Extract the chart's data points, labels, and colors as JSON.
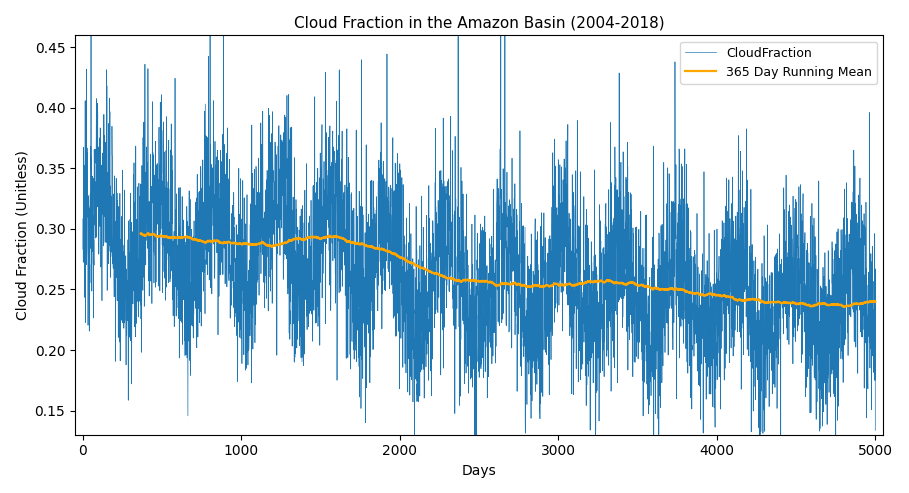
{
  "title": "Cloud Fraction in the Amazon Basin (2004-2018)",
  "xlabel": "Days",
  "ylabel": "Cloud Fraction (Unitless)",
  "xlim": [
    -50,
    5050
  ],
  "ylim": [
    0.13,
    0.46
  ],
  "yticks": [
    0.15,
    0.2,
    0.25,
    0.3,
    0.35,
    0.4,
    0.45
  ],
  "xticks": [
    0,
    1000,
    2000,
    3000,
    4000,
    5000
  ],
  "n_days": 5000,
  "cloud_color": "#1f77b4",
  "running_mean_color": "orange",
  "cloud_linewidth": 0.5,
  "running_mean_linewidth": 1.6,
  "window": 365,
  "legend_labels": [
    "CloudFraction",
    "365 Day Running Mean"
  ],
  "background_color": "#ffffff",
  "title_fontsize": 11,
  "label_fontsize": 10,
  "tick_fontsize": 10
}
